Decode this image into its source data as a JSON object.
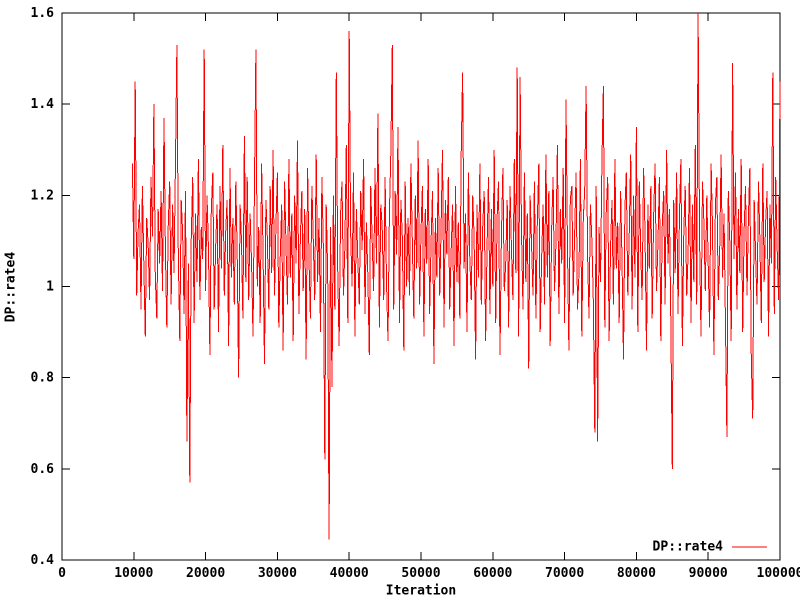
{
  "figure": {
    "background": "#ffffff",
    "border_color": "#000000",
    "text_color": "#000000"
  },
  "chart_data": {
    "type": "line",
    "title": "",
    "xlabel": "Iteration",
    "ylabel": "DP::rate4",
    "xlim": [
      0,
      100000
    ],
    "ylim": [
      0.4,
      1.6
    ],
    "x_ticks": [
      0,
      10000,
      20000,
      30000,
      40000,
      50000,
      60000,
      70000,
      80000,
      90000,
      100000
    ],
    "x_tick_labels": [
      "0",
      "10000",
      "20000",
      "30000",
      "40000",
      "50000",
      "60000",
      "70000",
      "80000",
      "90000",
      "100000"
    ],
    "y_ticks": [
      0.4,
      0.6,
      0.8,
      1.0,
      1.2,
      1.4,
      1.6
    ],
    "y_tick_labels": [
      "0.4",
      "0.6",
      "0.8",
      "1",
      "1.2",
      "1.4",
      "1.6"
    ],
    "grid": false,
    "tick_style": "inward-mirrored",
    "legend": {
      "label": "DP::rate4",
      "position": "bottom-right",
      "line_color": "#ff0000"
    },
    "series": [
      {
        "name": "DP::rate4",
        "color": "#ff0000",
        "x_start": 9800,
        "x_step": 200,
        "values": [
          1.27,
          1.06,
          1.45,
          0.98,
          1.12,
          1.18,
          0.95,
          1.22,
          1.04,
          0.89,
          1.15,
          1.09,
          0.97,
          1.24,
          1.11,
          1.4,
          1.02,
          0.93,
          1.17,
          1.05,
          1.21,
          0.99,
          1.37,
          1.08,
          0.91,
          1.14,
          1.23,
          0.96,
          1.18,
          1.03,
          1.26,
          1.53,
          1.07,
          0.88,
          1.19,
          1.12,
          0.94,
          1.21,
          0.66,
          1.05,
          0.57,
          1.1,
          1.24,
          0.92,
          1.16,
          1.01,
          1.28,
          0.97,
          1.13,
          1.06,
          1.52,
          0.99,
          1.2,
          1.08,
          0.85,
          1.17,
          1.25,
          0.95,
          1.09,
          1.18,
          0.9,
          1.22,
          1.04,
          1.31,
          0.98,
          1.12,
          1.19,
          0.87,
          1.26,
          1.02,
          1.15,
          0.96,
          1.23,
          1.07,
          0.8,
          1.18,
          1.1,
          0.93,
          1.33,
          1.01,
          1.24,
          0.97,
          1.16,
          1.05,
          0.89,
          1.21,
          1.52,
          1.0,
          1.13,
          0.92,
          1.27,
          1.08,
          0.83,
          1.19,
          1.11,
          0.95,
          1.22,
          1.03,
          1.3,
          0.98,
          1.14,
          1.25,
          0.91,
          1.07,
          1.18,
          0.86,
          1.23,
          1.09,
          0.96,
          1.28,
          1.02,
          1.16,
          0.88,
          1.2,
          1.05,
          1.32,
          0.94,
          1.11,
          1.21,
          0.99,
          1.17,
          0.84,
          1.26,
          1.06,
          0.93,
          1.22,
          1.1,
          0.97,
          1.29,
          1.01,
          1.15,
          0.9,
          1.24,
          1.08,
          0.62,
          1.18,
          1.03,
          0.445,
          1.13,
          0.78,
          1.2,
          0.95,
          1.47,
          1.04,
          0.87,
          1.16,
          1.23,
          0.98,
          1.09,
          1.31,
          0.92,
          1.56,
          1.12,
          1.0,
          1.25,
          0.89,
          1.17,
          1.06,
          0.96,
          1.21,
          1.08,
          1.28,
          0.94,
          1.14,
          1.02,
          0.85,
          1.22,
          1.1,
          0.99,
          1.26,
          1.05,
          1.38,
          0.91,
          1.18,
          1.13,
          0.97,
          1.24,
          1.01,
          0.88,
          1.16,
          1.29,
          1.53,
          0.95,
          1.21,
          1.07,
          1.35,
          0.92,
          1.19,
          1.11,
          0.86,
          1.23,
          1.0,
          1.15,
          0.98,
          1.27,
          1.09,
          0.93,
          1.2,
          1.04,
          1.32,
          0.96,
          1.12,
          1.22,
          0.89,
          1.17,
          1.05,
          1.28,
          0.94,
          1.1,
          1.21,
          0.83,
          1.15,
          1.02,
          1.26,
          0.98,
          1.13,
          1.3,
          0.91,
          1.19,
          1.07,
          1.24,
          0.95,
          1.08,
          1.18,
          0.87,
          1.22,
          1.01,
          1.14,
          0.93,
          1.29,
          1.47,
          1.04,
          1.16,
          0.9,
          1.25,
          1.06,
          0.97,
          1.2,
          1.11,
          0.84,
          1.18,
          1.02,
          1.27,
          0.96,
          1.13,
          1.21,
          0.88,
          1.09,
          1.24,
          0.94,
          1.17,
          1.0,
          1.3,
          0.92,
          1.15,
          1.23,
          0.85,
          1.11,
          1.26,
          0.99,
          1.05,
          1.19,
          0.91,
          1.22,
          1.08,
          0.97,
          1.28,
          1.03,
          1.48,
          0.89,
          1.46,
          1.12,
          0.95,
          1.25,
          1.01,
          1.16,
          0.82,
          1.2,
          1.09,
          0.98,
          1.23,
          0.93,
          1.14,
          1.27,
          0.9,
          1.06,
          1.18,
          0.96,
          1.29,
          1.02,
          1.21,
          0.87,
          1.13,
          1.24,
          0.99,
          1.1,
          1.31,
          0.94,
          1.17,
          1.05,
          1.26,
          0.92,
          1.41,
          1.08,
          0.86,
          1.19,
          1.22,
          0.98,
          1.12,
          1.25,
          0.95,
          1.03,
          1.28,
          0.89,
          1.15,
          1.21,
          1.44,
          1.07,
          0.93,
          1.18,
          1.1,
          0.97,
          0.68,
          1.22,
          0.66,
          1.13,
          1.01,
          1.27,
          1.44,
          0.91,
          1.16,
          1.24,
          0.88,
          1.09,
          1.19,
          0.96,
          1.28,
          1.04,
          1.14,
          0.92,
          1.21,
          1.06,
          0.84,
          1.17,
          1.25,
          0.98,
          1.11,
          1.29,
          0.95,
          1.2,
          1.02,
          1.35,
          0.9,
          1.23,
          1.08,
          0.97,
          1.26,
          1.12,
          0.86,
          1.18,
          1.04,
          1.22,
          0.93,
          1.15,
          1.27,
          0.99,
          1.09,
          1.24,
          0.88,
          1.13,
          1.21,
          0.96,
          1.3,
          1.05,
          1.17,
          0.91,
          0.6,
          1.19,
          1.03,
          1.25,
          0.94,
          1.16,
          1.28,
          0.87,
          1.12,
          1.22,
          0.98,
          1.07,
          1.26,
          0.92,
          1.18,
          1.01,
          1.31,
          0.96,
          1.6,
          1.1,
          0.89,
          1.23,
          1.14,
          0.99,
          1.2,
          1.05,
          0.91,
          1.27,
          1.13,
          0.85,
          1.18,
          1.24,
          0.97,
          1.08,
          1.29,
          1.02,
          1.16,
          0.93,
          0.67,
          1.21,
          1.11,
          0.88,
          1.49,
          1.06,
          1.25,
          0.95,
          1.17,
          1.03,
          1.28,
          0.9,
          1.12,
          1.22,
          0.98,
          1.15,
          1.26,
          0.84,
          0.71,
          1.19,
          1.07,
          0.96,
          1.23,
          1.1,
          0.92,
          1.27,
          1.01,
          1.14,
          1.21,
          0.89,
          1.18,
          1.05,
          1.47,
          0.94,
          1.24,
          1.09,
          0.97,
          1.45
        ]
      }
    ]
  }
}
